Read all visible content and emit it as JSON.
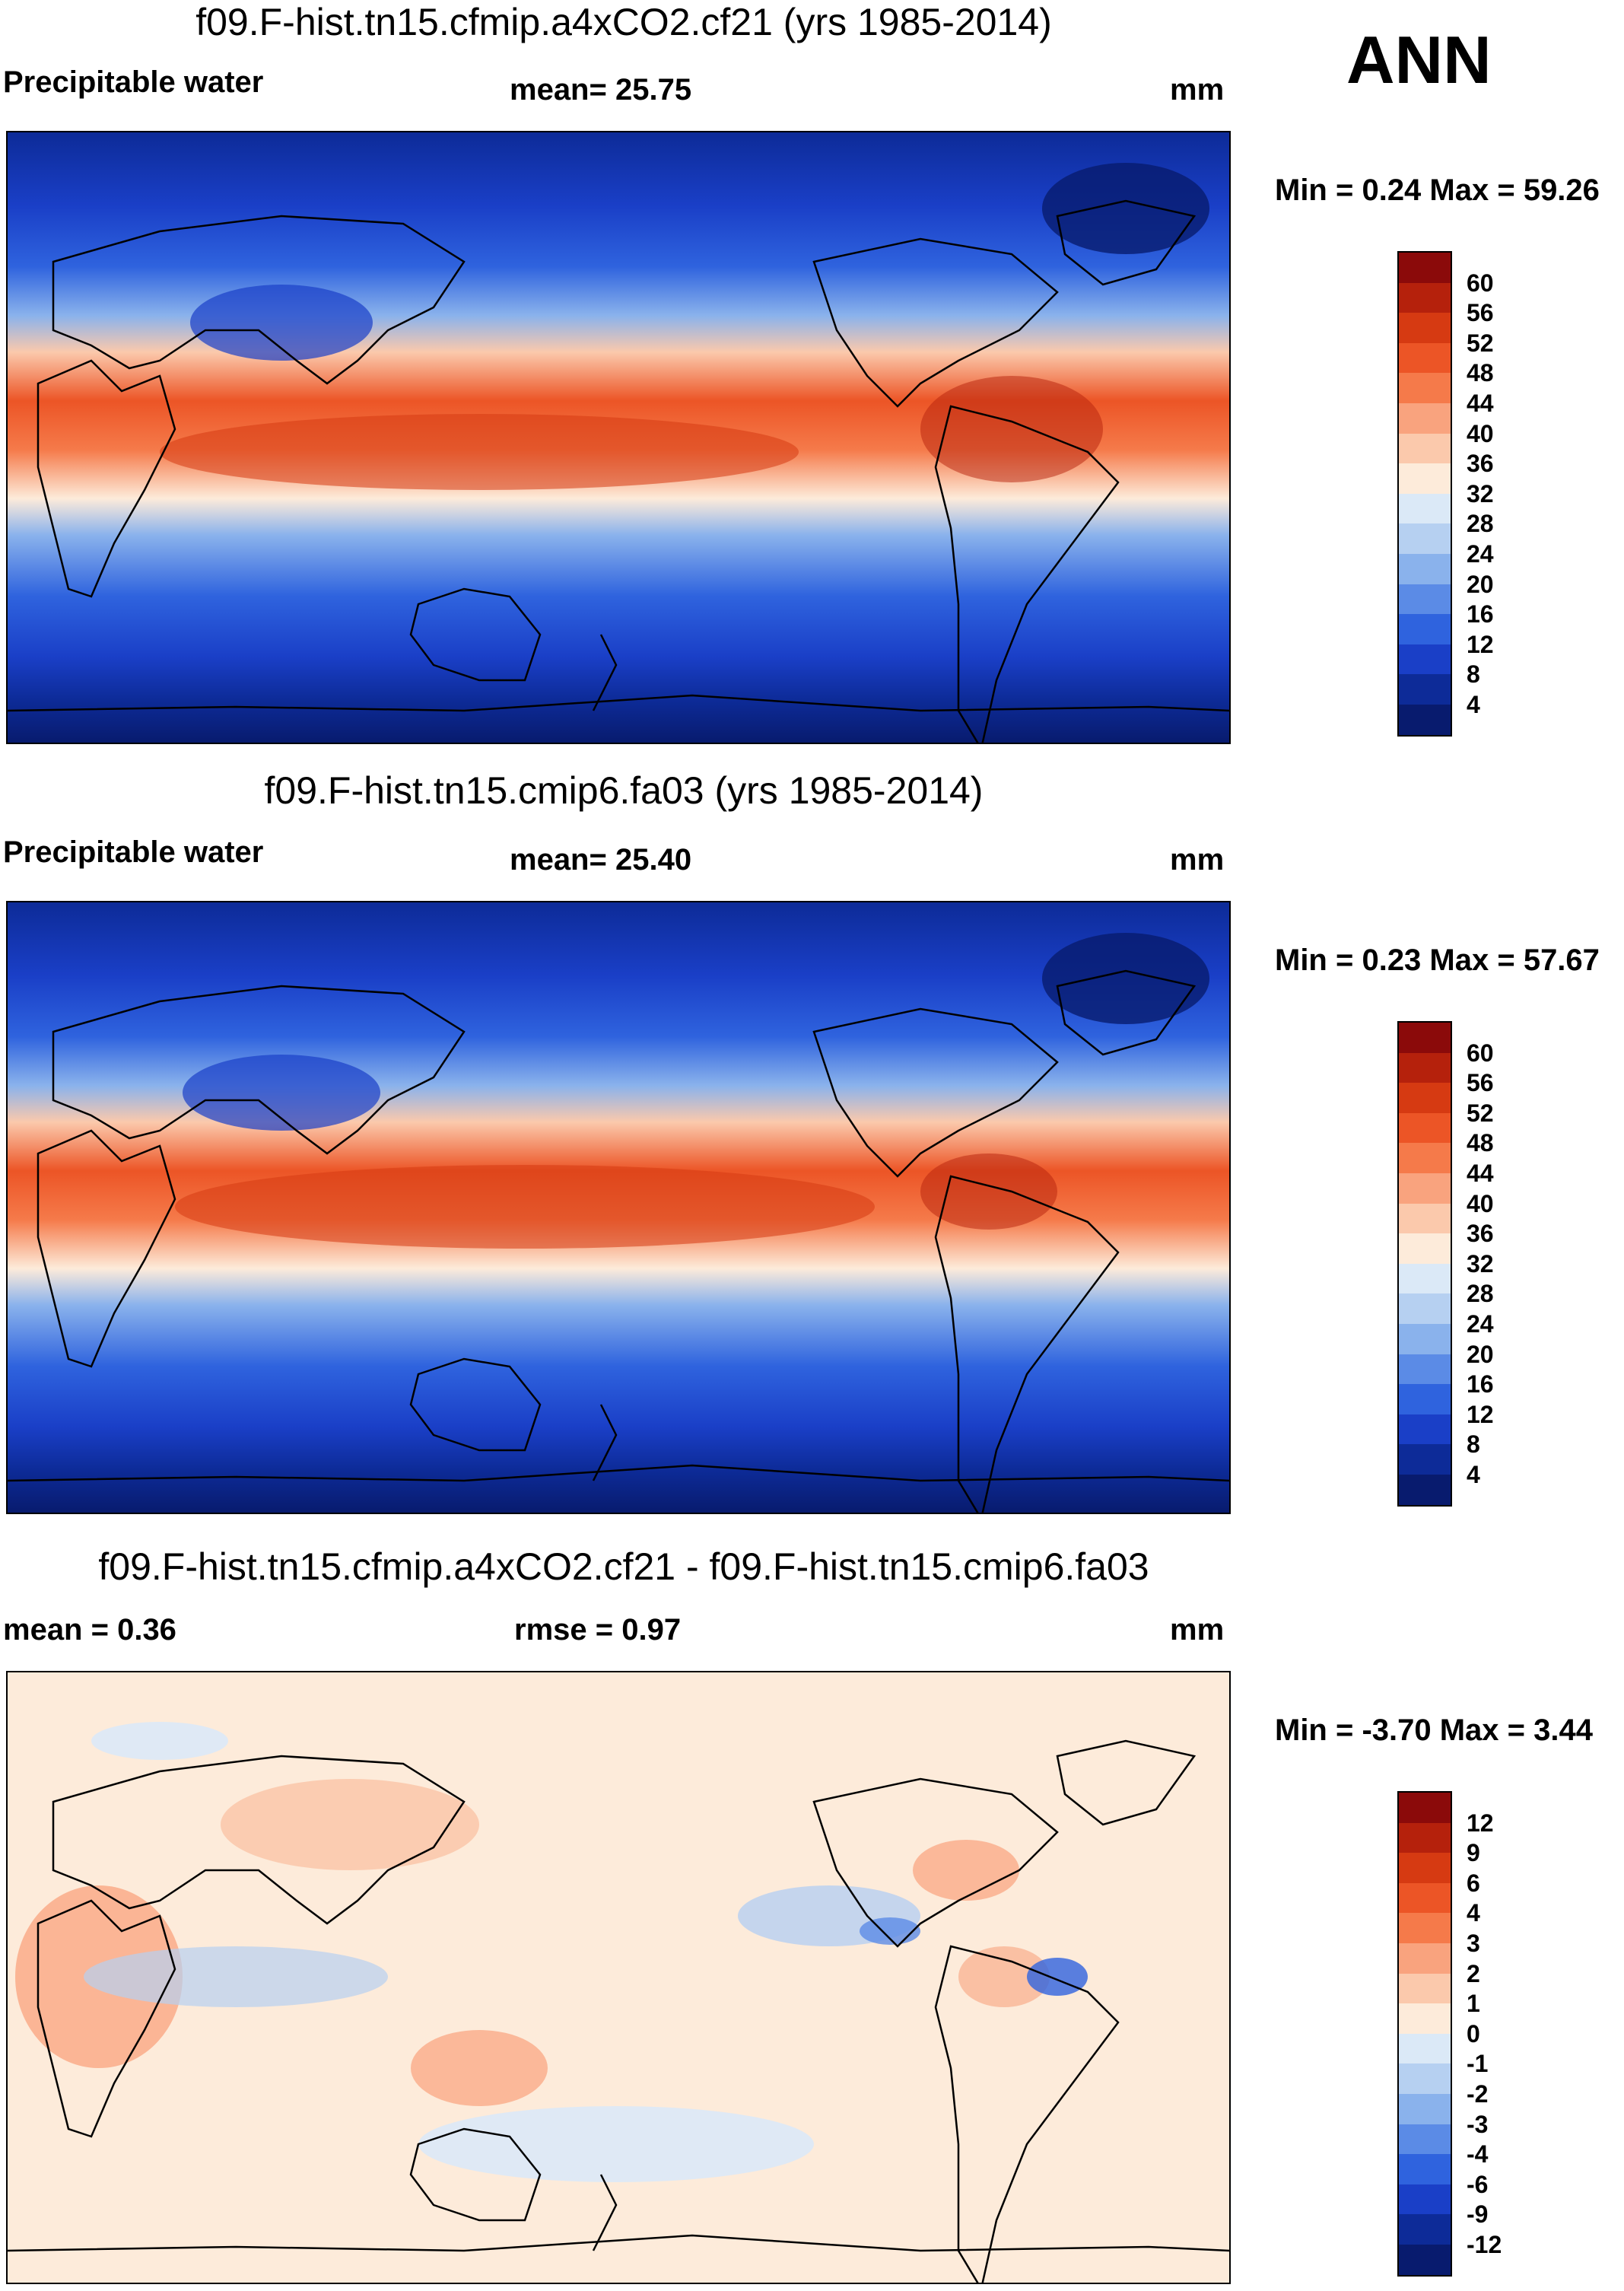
{
  "season": "ANN",
  "panels": [
    {
      "title": "f09.F-hist.tn15.cfmip.a4xCO2.cf21 (yrs 1985-2014)",
      "left_label": "Precipitable water",
      "center_label": "mean=  25.75",
      "right_label": "mm",
      "minmax": "Min =   0.24 Max =  59.26"
    },
    {
      "title": "f09.F-hist.tn15.cmip6.fa03 (yrs 1985-2014)",
      "left_label": "Precipitable water",
      "center_label": "mean=  25.40",
      "right_label": "mm",
      "minmax": "Min =   0.23 Max =  57.67"
    },
    {
      "title": "f09.F-hist.tn15.cfmip.a4xCO2.cf21 - f09.F-hist.tn15.cmip6.fa03",
      "left_label": "mean =   0.36",
      "center_label": "rmse =   0.97",
      "right_label": "mm",
      "minmax": "Min =  -3.70 Max =   3.44"
    }
  ],
  "colorbar_abs": {
    "labels": [
      "60",
      "56",
      "52",
      "48",
      "44",
      "40",
      "36",
      "32",
      "28",
      "24",
      "20",
      "16",
      "12",
      "8",
      "4"
    ],
    "colors": [
      "#8b0a0a",
      "#b5210c",
      "#d63a12",
      "#ec5526",
      "#f57a4a",
      "#f9a37e",
      "#fbc9ac",
      "#fdebda",
      "#dbe9f7",
      "#b6d0f1",
      "#8ab2ec",
      "#5b8be6",
      "#2f63de",
      "#1a3fc7",
      "#0d2b98",
      "#081b6e"
    ]
  },
  "colorbar_diff": {
    "labels": [
      "12",
      "9",
      "6",
      "4",
      "3",
      "2",
      "1",
      "0",
      "-1",
      "-2",
      "-3",
      "-4",
      "-6",
      "-9",
      "-12"
    ],
    "colors": [
      "#8b0a0a",
      "#b5210c",
      "#d63a12",
      "#ec5526",
      "#f57a4a",
      "#f9a37e",
      "#fbc9ac",
      "#fdebda",
      "#dbe9f7",
      "#b6d0f1",
      "#8ab2ec",
      "#5b8be6",
      "#2f63de",
      "#1a3fc7",
      "#0d2b98",
      "#081b6e"
    ]
  }
}
